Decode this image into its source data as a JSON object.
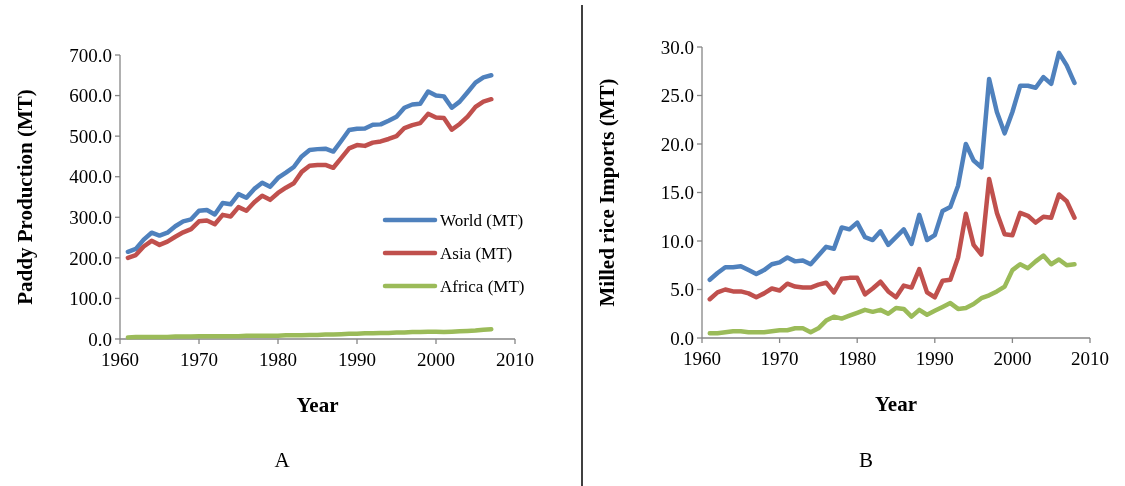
{
  "chart_data": [
    {
      "type": "line",
      "xlabel": "Year",
      "ylabel": "Paddy Production (MT)",
      "annotations": [
        "A"
      ],
      "legend": "right",
      "grid": false,
      "marker": "none",
      "line_style": "solid",
      "x": [
        1961,
        1962,
        1963,
        1964,
        1965,
        1966,
        1967,
        1968,
        1969,
        1970,
        1971,
        1972,
        1973,
        1974,
        1975,
        1976,
        1977,
        1978,
        1979,
        1980,
        1981,
        1982,
        1983,
        1984,
        1985,
        1986,
        1987,
        1988,
        1989,
        1990,
        1991,
        1992,
        1993,
        1994,
        1995,
        1996,
        1997,
        1998,
        1999,
        2000,
        2001,
        2002,
        2003,
        2004,
        2005,
        2006,
        2007
      ],
      "xlim": [
        1960,
        2010
      ],
      "xticks": [
        1960,
        1970,
        1980,
        1990,
        2000,
        2010
      ],
      "ylim": [
        0,
        700
      ],
      "yticks": [
        {
          "value": 0,
          "label": "0.0"
        },
        {
          "value": 100,
          "label": "100.0"
        },
        {
          "value": 200,
          "label": "200.0"
        },
        {
          "value": 300,
          "label": "300.0"
        },
        {
          "value": 400,
          "label": "400.0"
        },
        {
          "value": 500,
          "label": "500.0"
        },
        {
          "value": 600,
          "label": "600.0"
        },
        {
          "value": 700,
          "label": "700.0"
        }
      ],
      "series": [
        {
          "name": "World (MT)",
          "color": "#4f81bd",
          "values": [
            215,
            222,
            245,
            262,
            255,
            262,
            278,
            290,
            295,
            316,
            318,
            307,
            335,
            332,
            357,
            348,
            370,
            385,
            375,
            397,
            410,
            424,
            450,
            466,
            468,
            469,
            462,
            488,
            515,
            518,
            519,
            528,
            529,
            538,
            548,
            570,
            578,
            580,
            610,
            600,
            598,
            570,
            585,
            608,
            632,
            645,
            650
          ]
        },
        {
          "name": "Asia (MT)",
          "color": "#c0504d",
          "values": [
            200,
            207,
            228,
            242,
            232,
            240,
            252,
            263,
            271,
            290,
            292,
            283,
            306,
            302,
            325,
            316,
            337,
            353,
            343,
            360,
            373,
            384,
            412,
            427,
            429,
            429,
            422,
            446,
            470,
            478,
            476,
            484,
            487,
            493,
            500,
            520,
            527,
            532,
            555,
            546,
            545,
            516,
            530,
            548,
            572,
            585,
            591
          ]
        },
        {
          "name": "Africa (MT)",
          "color": "#9bbb59",
          "values": [
            4,
            5,
            5,
            5,
            5,
            5,
            6,
            6,
            6,
            7,
            7,
            7,
            7,
            7,
            7,
            8,
            8,
            8,
            8,
            8,
            9,
            9,
            9,
            10,
            10,
            11,
            11,
            12,
            13,
            13,
            14,
            14,
            15,
            15,
            16,
            16,
            17,
            17,
            18,
            18,
            17,
            18,
            19,
            20,
            21,
            23,
            24
          ]
        }
      ]
    },
    {
      "type": "line",
      "xlabel": "Year",
      "ylabel": "Milled rice Imports (MT)",
      "annotations": [
        "B"
      ],
      "grid": false,
      "marker": "none",
      "line_style": "solid",
      "x": [
        1961,
        1962,
        1963,
        1964,
        1965,
        1966,
        1967,
        1968,
        1969,
        1970,
        1971,
        1972,
        1973,
        1974,
        1975,
        1976,
        1977,
        1978,
        1979,
        1980,
        1981,
        1982,
        1983,
        1984,
        1985,
        1986,
        1987,
        1988,
        1989,
        1990,
        1991,
        1992,
        1993,
        1994,
        1995,
        1996,
        1997,
        1998,
        1999,
        2000,
        2001,
        2002,
        2003,
        2004,
        2005,
        2006,
        2007,
        2008
      ],
      "xlim": [
        1960,
        2010
      ],
      "xticks": [
        1960,
        1970,
        1980,
        1990,
        2000,
        2010
      ],
      "ylim": [
        0,
        30
      ],
      "yticks": [
        {
          "value": 0,
          "label": "0.0"
        },
        {
          "value": 5,
          "label": "5.0"
        },
        {
          "value": 10,
          "label": "10.0"
        },
        {
          "value": 15,
          "label": "15.0"
        },
        {
          "value": 20,
          "label": "20.0"
        },
        {
          "value": 25,
          "label": "25.0"
        },
        {
          "value": 30,
          "label": "30.0"
        }
      ],
      "series": [
        {
          "color": "#4f81bd",
          "values": [
            6.0,
            6.7,
            7.3,
            7.3,
            7.4,
            7.0,
            6.6,
            7.0,
            7.6,
            7.8,
            8.3,
            7.9,
            8.0,
            7.6,
            8.5,
            9.4,
            9.2,
            11.4,
            11.2,
            11.9,
            10.4,
            10.1,
            11.0,
            9.6,
            10.4,
            11.2,
            9.7,
            12.7,
            10.1,
            10.6,
            13.1,
            13.5,
            15.7,
            20.0,
            18.3,
            17.6,
            26.7,
            23.3,
            21.1,
            23.3,
            26.0,
            26.0,
            25.8,
            26.9,
            26.2,
            29.4,
            28.1,
            26.3
          ]
        },
        {
          "color": "#c0504d",
          "values": [
            4.0,
            4.7,
            5.0,
            4.8,
            4.8,
            4.6,
            4.2,
            4.6,
            5.1,
            4.9,
            5.6,
            5.3,
            5.2,
            5.2,
            5.5,
            5.7,
            4.7,
            6.1,
            6.2,
            6.2,
            4.5,
            5.1,
            5.8,
            4.8,
            4.2,
            5.4,
            5.2,
            7.1,
            4.7,
            4.2,
            5.9,
            6.0,
            8.3,
            12.8,
            9.6,
            8.6,
            16.4,
            12.9,
            10.7,
            10.6,
            12.9,
            12.6,
            11.9,
            12.5,
            12.4,
            14.8,
            14.1,
            12.4
          ]
        },
        {
          "color": "#9bbb59",
          "values": [
            0.5,
            0.5,
            0.6,
            0.7,
            0.7,
            0.6,
            0.6,
            0.6,
            0.7,
            0.8,
            0.8,
            1.0,
            1.0,
            0.6,
            1.0,
            1.8,
            2.2,
            2.0,
            2.3,
            2.6,
            2.9,
            2.7,
            2.9,
            2.5,
            3.1,
            3.0,
            2.2,
            2.9,
            2.4,
            2.8,
            3.2,
            3.6,
            3.0,
            3.1,
            3.5,
            4.1,
            4.4,
            4.8,
            5.3,
            7.0,
            7.6,
            7.2,
            7.9,
            8.5,
            7.6,
            8.1,
            7.5,
            7.6
          ]
        }
      ]
    }
  ]
}
